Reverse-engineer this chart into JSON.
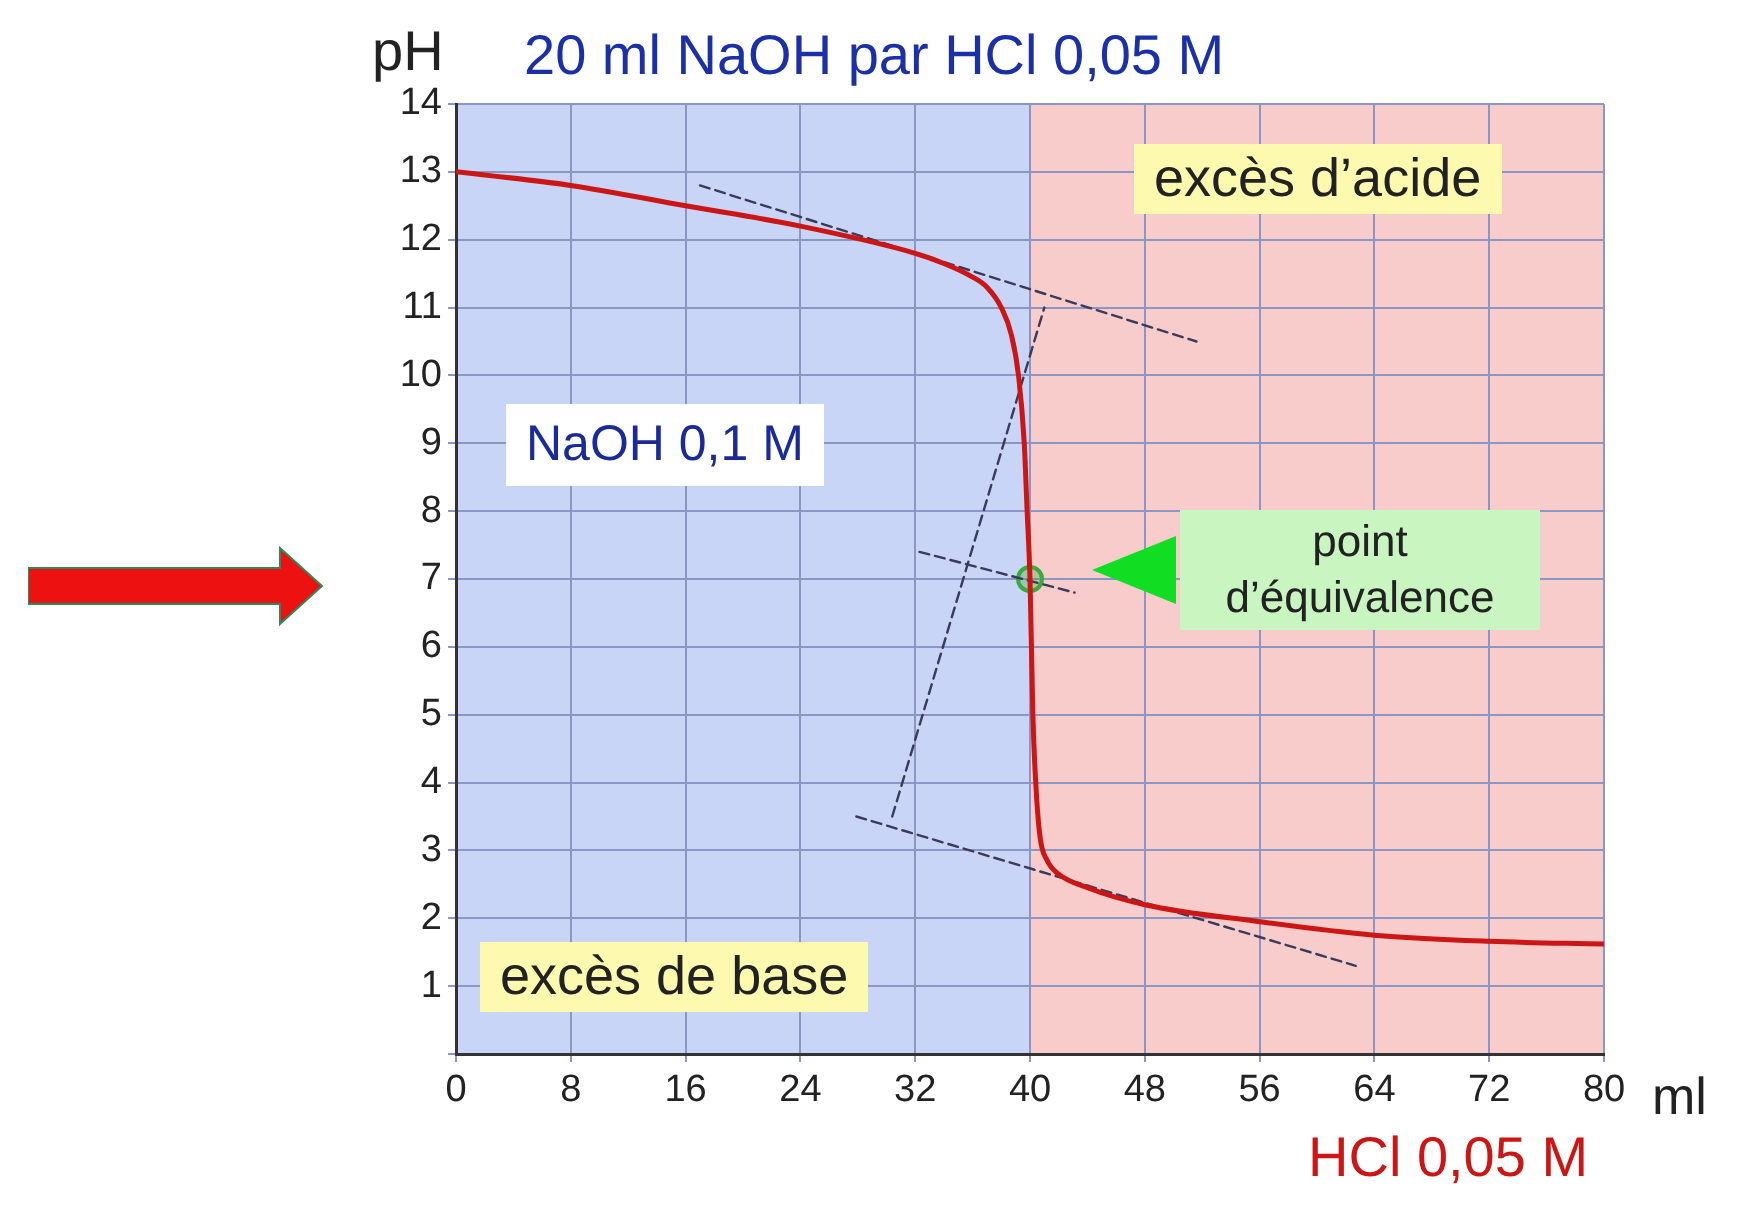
{
  "chart_data": {
    "type": "line",
    "title": "20 ml NaOH par HCl 0,05 M",
    "ylabel": "pH",
    "xlabel": "ml",
    "annotations": [
      "NaOH 0,1 M",
      "HCl 0,05 M",
      "point d’équivalence"
    ],
    "xlim": [
      0,
      80
    ],
    "ylim": [
      0,
      14
    ],
    "xticks": [
      0,
      8,
      16,
      24,
      32,
      40,
      48,
      56,
      64,
      72,
      80
    ],
    "yticks": [
      {
        "value": 0,
        "label": null
      },
      1,
      2,
      3,
      4,
      5,
      6,
      7,
      8,
      9,
      10,
      11,
      12,
      13,
      14
    ],
    "grid": true,
    "legend": false,
    "bands": [
      {
        "axis": "x",
        "from": 0,
        "to": 40,
        "label": "excès de base",
        "color": "#c9d5f7"
      },
      {
        "axis": "x",
        "from": 40,
        "to": 80,
        "label": "excès d’acide",
        "color": "#f9cccc"
      }
    ],
    "series": [
      {
        "color": "#cc1515",
        "line_style": "solid",
        "marker": "none",
        "x": [
          0,
          8,
          16,
          24,
          32,
          34,
          36,
          37,
          38,
          38.7,
          39.2,
          39.6,
          39.8,
          40,
          40.2,
          40.4,
          40.7,
          41.2,
          42,
          44,
          48,
          56,
          64,
          72,
          80
        ],
        "values": [
          13,
          12.8,
          12.5,
          12.2,
          11.8,
          11.65,
          11.45,
          11.3,
          11,
          10.6,
          10,
          9,
          8,
          7,
          5,
          4,
          3.2,
          2.85,
          2.65,
          2.45,
          2.2,
          1.95,
          1.75,
          1.66,
          1.62
        ]
      },
      {
        "color": "#3a3a5a",
        "line_style": "dashed",
        "marker": "none",
        "x": [
          17,
          51.6
        ],
        "values": [
          12.8,
          10.5
        ]
      },
      {
        "color": "#3a3a5a",
        "line_style": "dashed",
        "marker": "none",
        "x": [
          27.9,
          62.7
        ],
        "values": [
          3.5,
          1.3
        ]
      },
      {
        "color": "#3a3a5a",
        "line_style": "dashed",
        "marker": "none",
        "x": [
          32.3,
          43.1
        ],
        "values": [
          7.4,
          6.8
        ]
      },
      {
        "color": "#3a3a5a",
        "line_style": "dashed",
        "marker": "none",
        "x": [
          30.4,
          41
        ],
        "values": [
          3.5,
          11
        ]
      },
      {
        "type": "scatter",
        "color": "#3aaa3a",
        "marker": "circle",
        "x": [
          40
        ],
        "values": [
          7
        ]
      }
    ]
  }
}
